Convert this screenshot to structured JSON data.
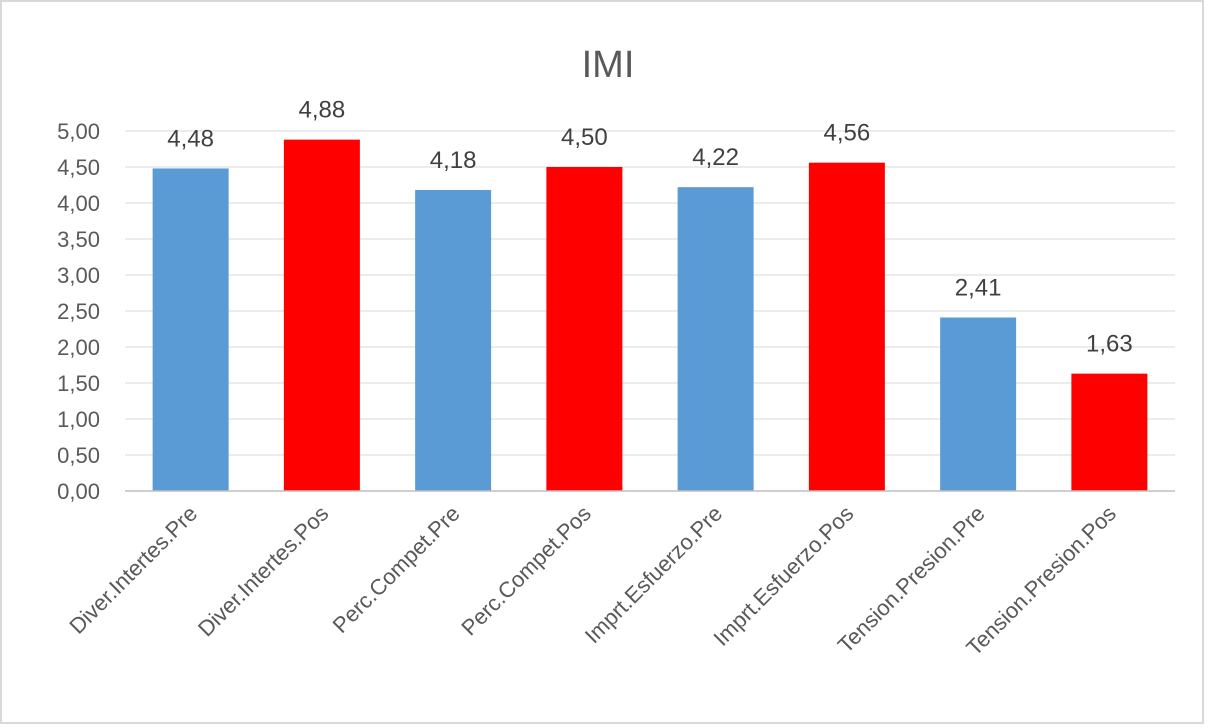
{
  "chart_data": {
    "type": "bar",
    "title": "IMI",
    "xlabel": "",
    "ylabel": "",
    "ylim": [
      0,
      5
    ],
    "ytick_step": 0.5,
    "yticks": [
      "0,00",
      "0,50",
      "1,00",
      "1,50",
      "2,00",
      "2,50",
      "3,00",
      "3,50",
      "4,00",
      "4,50",
      "5,00"
    ],
    "grid": true,
    "legend": "none",
    "categories": [
      "Diver.Intertes.Pre",
      "Diver.Intertes.Pos",
      "Perc.Compet.Pre",
      "Perc.Compet.Pos",
      "Imprt.Esfuerzo.Pre",
      "Imprt.Esfuerzo.Pos",
      "Tension.Presion.Pre",
      "Tension.Presion.Pos"
    ],
    "values": [
      4.48,
      4.88,
      4.18,
      4.5,
      4.22,
      4.56,
      2.41,
      1.63
    ],
    "data_labels": [
      "4,48",
      "4,88",
      "4,18",
      "4,50",
      "4,22",
      "4,56",
      "2,41",
      "1,63"
    ],
    "bar_colors": [
      "#5b9bd5",
      "#ff0000",
      "#5b9bd5",
      "#ff0000",
      "#5b9bd5",
      "#ff0000",
      "#5b9bd5",
      "#ff0000"
    ]
  }
}
